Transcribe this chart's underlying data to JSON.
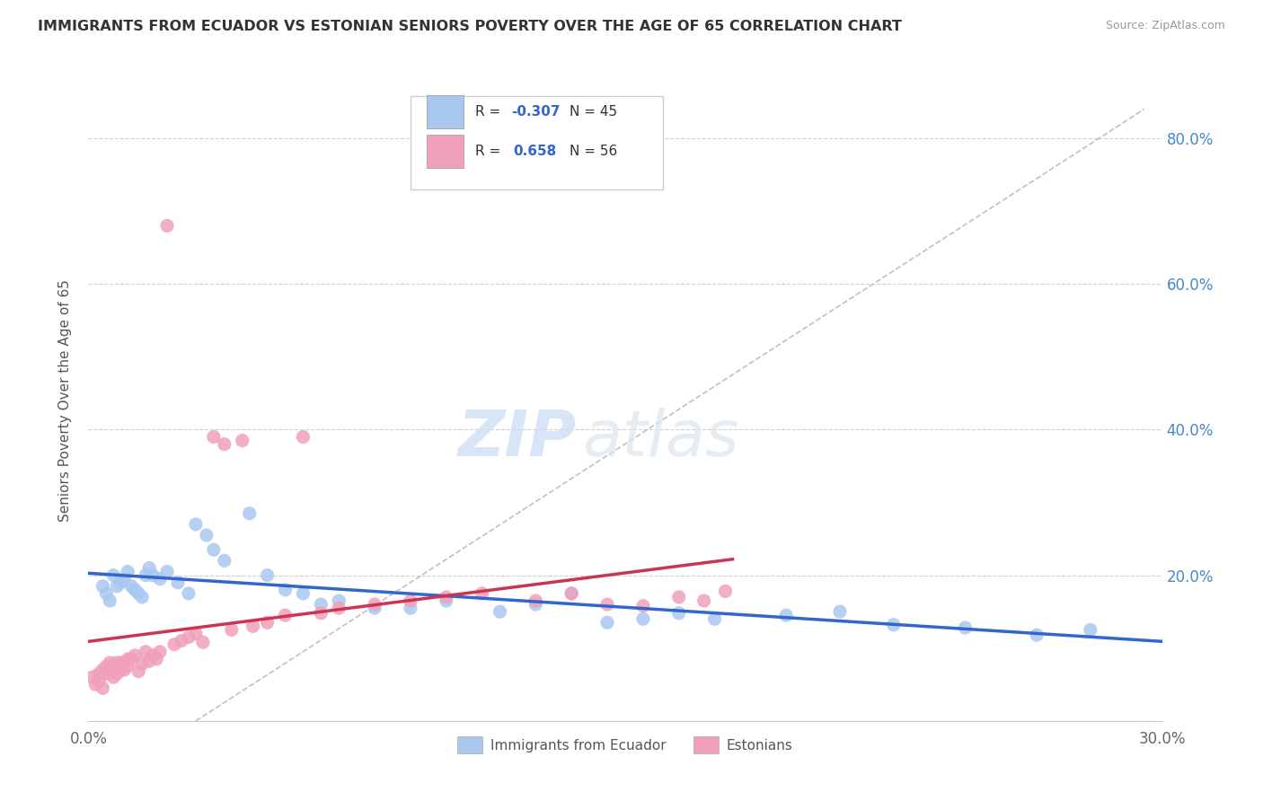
{
  "title": "IMMIGRANTS FROM ECUADOR VS ESTONIAN SENIORS POVERTY OVER THE AGE OF 65 CORRELATION CHART",
  "source": "Source: ZipAtlas.com",
  "ylabel": "Seniors Poverty Over the Age of 65",
  "xlim": [
    0.0,
    0.3
  ],
  "ylim": [
    0.0,
    0.88
  ],
  "xticks": [
    0.0,
    0.05,
    0.1,
    0.15,
    0.2,
    0.25,
    0.3
  ],
  "xticklabels": [
    "0.0%",
    "",
    "",
    "",
    "",
    "",
    "30.0%"
  ],
  "yticks": [
    0.0,
    0.2,
    0.4,
    0.6,
    0.8
  ],
  "yticklabels_right": [
    "",
    "20.0%",
    "40.0%",
    "60.0%",
    "80.0%"
  ],
  "blue_scatter_x": [
    0.004,
    0.005,
    0.006,
    0.007,
    0.008,
    0.009,
    0.01,
    0.011,
    0.012,
    0.013,
    0.014,
    0.015,
    0.016,
    0.017,
    0.018,
    0.02,
    0.022,
    0.025,
    0.028,
    0.03,
    0.033,
    0.035,
    0.038,
    0.045,
    0.05,
    0.055,
    0.06,
    0.065,
    0.07,
    0.08,
    0.09,
    0.1,
    0.115,
    0.125,
    0.135,
    0.145,
    0.155,
    0.165,
    0.175,
    0.195,
    0.21,
    0.225,
    0.245,
    0.265,
    0.28
  ],
  "blue_scatter_y": [
    0.185,
    0.175,
    0.165,
    0.2,
    0.185,
    0.19,
    0.195,
    0.205,
    0.185,
    0.18,
    0.175,
    0.17,
    0.2,
    0.21,
    0.2,
    0.195,
    0.205,
    0.19,
    0.175,
    0.27,
    0.255,
    0.235,
    0.22,
    0.285,
    0.2,
    0.18,
    0.175,
    0.16,
    0.165,
    0.155,
    0.155,
    0.165,
    0.15,
    0.16,
    0.175,
    0.135,
    0.14,
    0.148,
    0.14,
    0.145,
    0.15,
    0.132,
    0.128,
    0.118,
    0.125
  ],
  "pink_scatter_x": [
    0.001,
    0.002,
    0.003,
    0.003,
    0.004,
    0.004,
    0.005,
    0.005,
    0.006,
    0.006,
    0.007,
    0.007,
    0.008,
    0.008,
    0.009,
    0.009,
    0.01,
    0.01,
    0.011,
    0.011,
    0.012,
    0.013,
    0.014,
    0.015,
    0.016,
    0.017,
    0.018,
    0.019,
    0.02,
    0.022,
    0.024,
    0.026,
    0.028,
    0.03,
    0.032,
    0.035,
    0.038,
    0.04,
    0.043,
    0.046,
    0.05,
    0.055,
    0.06,
    0.065,
    0.07,
    0.08,
    0.09,
    0.1,
    0.11,
    0.125,
    0.135,
    0.145,
    0.155,
    0.165,
    0.172,
    0.178
  ],
  "pink_scatter_y": [
    0.06,
    0.05,
    0.055,
    0.065,
    0.045,
    0.07,
    0.075,
    0.065,
    0.075,
    0.08,
    0.06,
    0.075,
    0.08,
    0.065,
    0.07,
    0.08,
    0.07,
    0.08,
    0.075,
    0.085,
    0.085,
    0.09,
    0.068,
    0.078,
    0.095,
    0.082,
    0.09,
    0.085,
    0.095,
    0.68,
    0.105,
    0.11,
    0.115,
    0.12,
    0.108,
    0.39,
    0.38,
    0.125,
    0.385,
    0.13,
    0.135,
    0.145,
    0.39,
    0.148,
    0.155,
    0.16,
    0.165,
    0.17,
    0.175,
    0.165,
    0.175,
    0.16,
    0.158,
    0.17,
    0.165,
    0.178
  ],
  "blue_color": "#a8c8f0",
  "pink_color": "#f0a0b8",
  "blue_line_color": "#3366cc",
  "pink_line_color": "#cc3355",
  "legend_R_blue": "-0.307",
  "legend_N_blue": "45",
  "legend_R_pink": "0.658",
  "legend_N_pink": "56",
  "legend_label_blue": "Immigrants from Ecuador",
  "legend_label_pink": "Estonians",
  "watermark_zip": "ZIP",
  "watermark_atlas": "atlas",
  "background_color": "#ffffff",
  "grid_color": "#d0d0d0"
}
